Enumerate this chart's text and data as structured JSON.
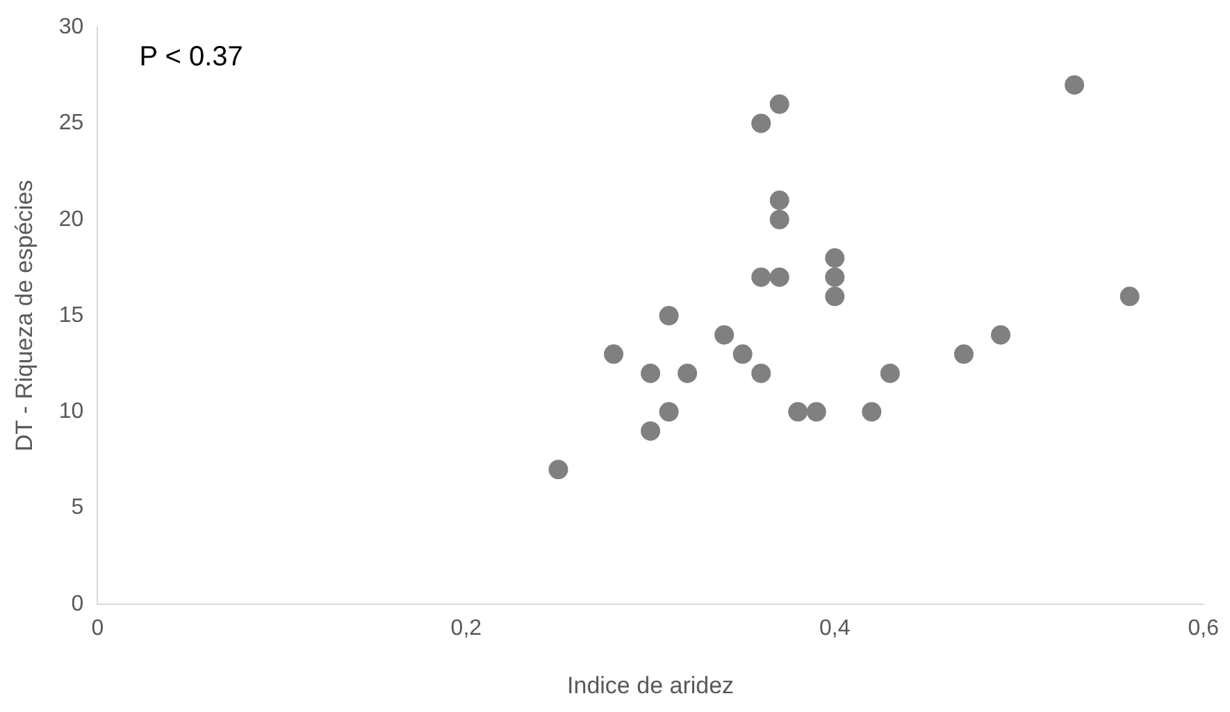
{
  "chart_data": {
    "type": "scatter",
    "xlabel": "Indice de aridez",
    "ylabel": "DT - Riqueza de espécies",
    "annotations": [
      "P < 0.37"
    ],
    "x": [
      0.25,
      0.28,
      0.3,
      0.3,
      0.31,
      0.31,
      0.32,
      0.34,
      0.35,
      0.36,
      0.36,
      0.36,
      0.37,
      0.37,
      0.37,
      0.37,
      0.38,
      0.39,
      0.4,
      0.4,
      0.4,
      0.42,
      0.43,
      0.47,
      0.49,
      0.53,
      0.56
    ],
    "values": [
      7,
      13,
      9,
      12,
      10,
      15,
      12,
      14,
      13,
      12,
      17,
      25,
      26,
      21,
      20,
      17,
      10,
      10,
      18,
      17,
      16,
      10,
      12,
      13,
      14,
      27,
      16
    ],
    "color": "#808080",
    "marker": "circle",
    "xlim": [
      0,
      0.6
    ],
    "xticks": [
      0,
      {
        "value": 0.2,
        "label": "0,2"
      },
      {
        "value": 0.4,
        "label": "0,4"
      },
      {
        "value": 0.6,
        "label": "0,6"
      }
    ],
    "ylim": [
      0,
      30
    ],
    "yticks": [
      0,
      5,
      10,
      15,
      20,
      25,
      30
    ],
    "grid": false,
    "legend": false
  }
}
